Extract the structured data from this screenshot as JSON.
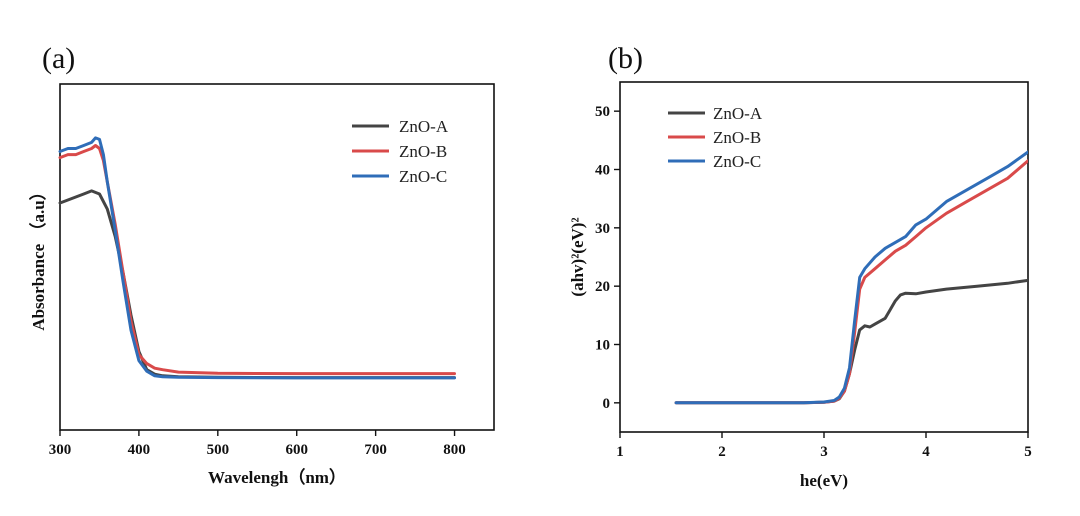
{
  "chart_data": [
    {
      "panel_label": "(a)",
      "type": "line",
      "title": "",
      "xlabel": "Wavelengh（nm）",
      "ylabel": "Absorbance （a.u）",
      "xlim": [
        300,
        850
      ],
      "ylim": [
        0,
        1
      ],
      "xticks": [
        "300",
        "400",
        "500",
        "600",
        "700",
        "800"
      ],
      "yticks": [],
      "legend_position": "top-right",
      "series": [
        {
          "name": "ZnO-A",
          "color": "#444444",
          "x": [
            300,
            310,
            320,
            330,
            340,
            350,
            360,
            370,
            380,
            390,
            400,
            410,
            420,
            430,
            450,
            500,
            600,
            700,
            800
          ],
          "y": [
            0.65,
            0.66,
            0.67,
            0.68,
            0.69,
            0.68,
            0.63,
            0.54,
            0.42,
            0.28,
            0.16,
            0.1,
            0.085,
            0.08,
            0.077,
            0.075,
            0.074,
            0.074,
            0.074
          ]
        },
        {
          "name": "ZnO-B",
          "color": "#d94a4a",
          "x": [
            300,
            310,
            320,
            330,
            340,
            345,
            350,
            355,
            360,
            370,
            380,
            390,
            400,
            410,
            420,
            430,
            450,
            500,
            600,
            700,
            800
          ],
          "y": [
            0.8,
            0.81,
            0.81,
            0.82,
            0.83,
            0.84,
            0.83,
            0.79,
            0.72,
            0.58,
            0.42,
            0.26,
            0.15,
            0.12,
            0.105,
            0.1,
            0.092,
            0.088,
            0.087,
            0.087,
            0.087
          ]
        },
        {
          "name": "ZnO-C",
          "color": "#2f6db8",
          "x": [
            300,
            310,
            320,
            330,
            340,
            345,
            350,
            355,
            360,
            370,
            380,
            390,
            400,
            410,
            420,
            430,
            450,
            500,
            600,
            700,
            800
          ],
          "y": [
            0.82,
            0.83,
            0.83,
            0.84,
            0.85,
            0.865,
            0.86,
            0.81,
            0.72,
            0.56,
            0.39,
            0.23,
            0.13,
            0.095,
            0.08,
            0.077,
            0.075,
            0.074,
            0.073,
            0.073,
            0.073
          ]
        }
      ]
    },
    {
      "panel_label": "(b)",
      "type": "line",
      "title": "",
      "xlabel": "he(eV)",
      "ylabel": "(ahv)²(eV)²",
      "xlim": [
        1,
        5
      ],
      "ylim": [
        -5,
        55
      ],
      "xticks": [
        1,
        2,
        3,
        4,
        5
      ],
      "yticks": [
        0,
        10,
        20,
        30,
        40,
        50
      ],
      "legend_position": "top-left",
      "series": [
        {
          "name": "ZnO-A",
          "color": "#444444",
          "x": [
            1.55,
            2.0,
            2.5,
            2.8,
            3.0,
            3.1,
            3.15,
            3.2,
            3.25,
            3.3,
            3.35,
            3.4,
            3.45,
            3.5,
            3.6,
            3.7,
            3.75,
            3.8,
            3.9,
            4.0,
            4.2,
            4.5,
            4.8,
            5.0
          ],
          "y": [
            0,
            0,
            0,
            0,
            0.1,
            0.3,
            0.7,
            2.0,
            5.0,
            9.0,
            12.5,
            13.2,
            13.0,
            13.5,
            14.5,
            17.5,
            18.5,
            18.8,
            18.7,
            19.0,
            19.5,
            20.0,
            20.5,
            21.0
          ]
        },
        {
          "name": "ZnO-B",
          "color": "#d94a4a",
          "x": [
            1.55,
            2.0,
            2.5,
            2.8,
            3.0,
            3.1,
            3.15,
            3.2,
            3.25,
            3.3,
            3.35,
            3.4,
            3.5,
            3.6,
            3.7,
            3.8,
            3.9,
            4.0,
            4.2,
            4.4,
            4.6,
            4.8,
            5.0
          ],
          "y": [
            0,
            0,
            0,
            0,
            0.1,
            0.3,
            0.8,
            2.0,
            5.0,
            12.0,
            19.5,
            21.5,
            23.0,
            24.5,
            26.0,
            27.0,
            28.5,
            30.0,
            32.5,
            34.5,
            36.5,
            38.5,
            41.5
          ]
        },
        {
          "name": "ZnO-C",
          "color": "#2f6db8",
          "x": [
            1.55,
            2.0,
            2.5,
            2.8,
            3.0,
            3.1,
            3.15,
            3.2,
            3.25,
            3.3,
            3.35,
            3.4,
            3.5,
            3.6,
            3.7,
            3.8,
            3.9,
            4.0,
            4.2,
            4.4,
            4.6,
            4.8,
            5.0
          ],
          "y": [
            0,
            0,
            0,
            0,
            0.15,
            0.4,
            1.0,
            2.5,
            6.0,
            14.0,
            21.5,
            23.0,
            25.0,
            26.5,
            27.5,
            28.5,
            30.5,
            31.5,
            34.5,
            36.5,
            38.5,
            40.5,
            43.0
          ]
        }
      ]
    }
  ]
}
